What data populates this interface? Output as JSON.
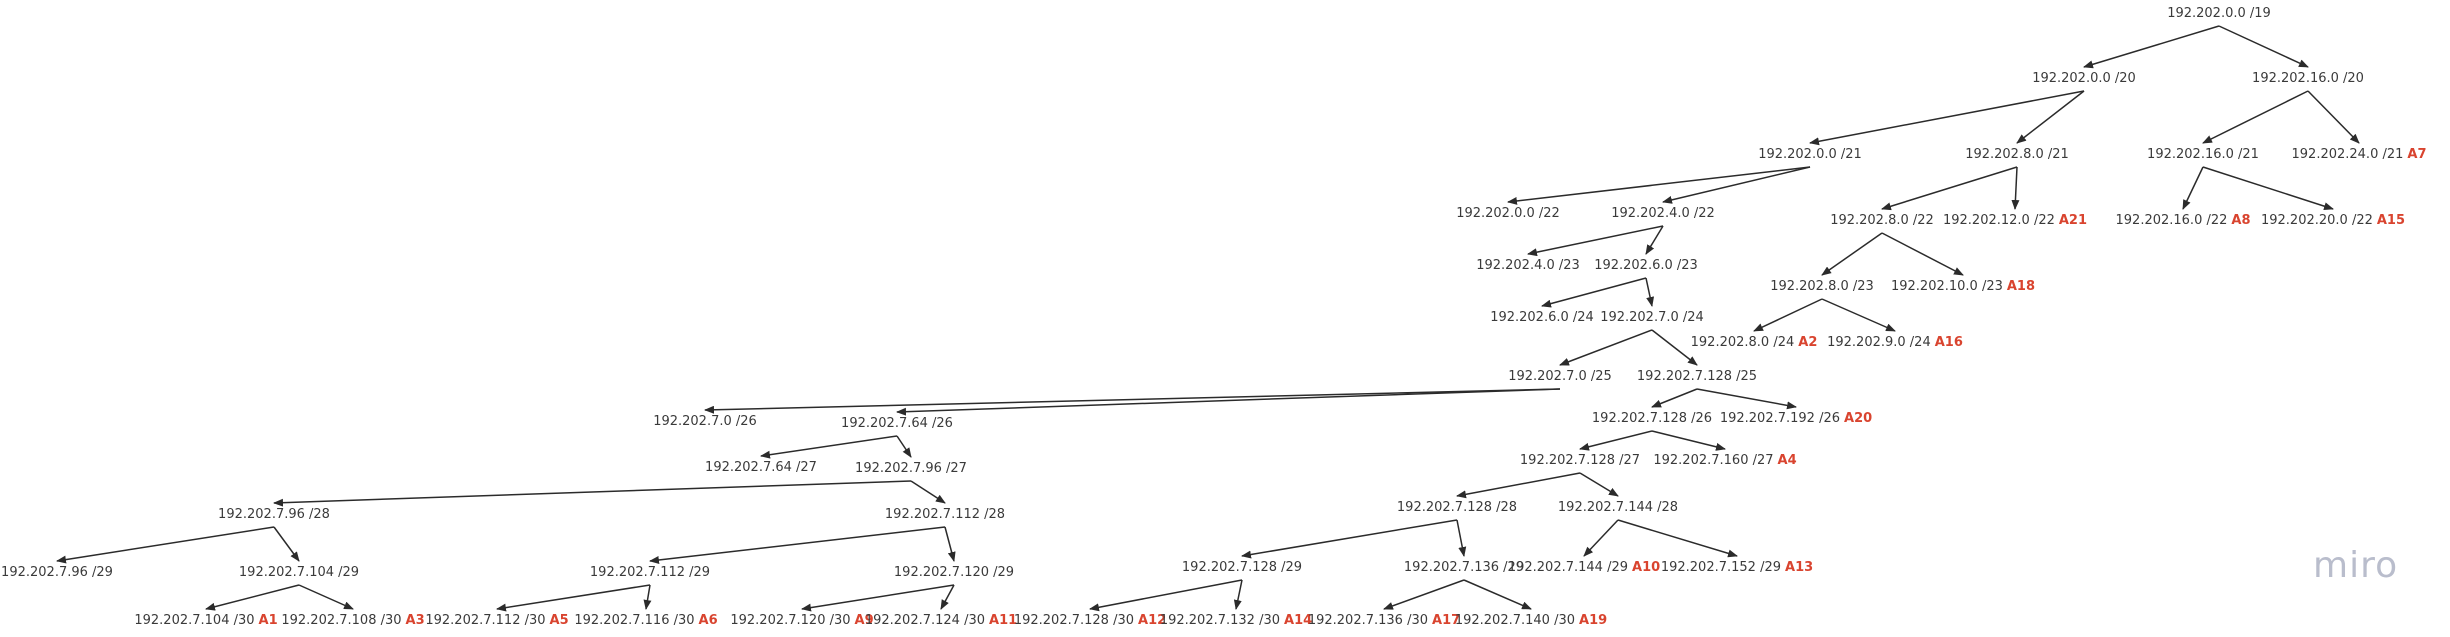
{
  "diagram": {
    "nodes": [
      {
        "id": "n19_0",
        "label": "192.202.0.0 /19",
        "tag": ""
      },
      {
        "id": "n20_0",
        "label": "192.202.0.0 /20",
        "tag": ""
      },
      {
        "id": "n20_16",
        "label": "192.202.16.0 /20",
        "tag": ""
      },
      {
        "id": "n21_0",
        "label": "192.202.0.0 /21",
        "tag": ""
      },
      {
        "id": "n21_8",
        "label": "192.202.8.0 /21",
        "tag": ""
      },
      {
        "id": "n21_16",
        "label": "192.202.16.0 /21",
        "tag": ""
      },
      {
        "id": "n21_24",
        "label": "192.202.24.0 /21",
        "tag": "A7"
      },
      {
        "id": "n22_0",
        "label": "192.202.0.0 /22",
        "tag": ""
      },
      {
        "id": "n22_4",
        "label": "192.202.4.0 /22",
        "tag": ""
      },
      {
        "id": "n22_8",
        "label": "192.202.8.0 /22",
        "tag": ""
      },
      {
        "id": "n22_12",
        "label": "192.202.12.0 /22",
        "tag": "A21"
      },
      {
        "id": "n22_16",
        "label": "192.202.16.0 /22",
        "tag": "A8"
      },
      {
        "id": "n22_20",
        "label": "192.202.20.0 /22",
        "tag": "A15"
      },
      {
        "id": "n23_4",
        "label": "192.202.4.0 /23",
        "tag": ""
      },
      {
        "id": "n23_6",
        "label": "192.202.6.0 /23",
        "tag": ""
      },
      {
        "id": "n23_8",
        "label": "192.202.8.0 /23",
        "tag": ""
      },
      {
        "id": "n23_10",
        "label": "192.202.10.0 /23",
        "tag": "A18"
      },
      {
        "id": "n24_6",
        "label": "192.202.6.0 /24",
        "tag": ""
      },
      {
        "id": "n24_7",
        "label": "192.202.7.0 /24",
        "tag": ""
      },
      {
        "id": "n24_8",
        "label": "192.202.8.0 /24",
        "tag": "A2"
      },
      {
        "id": "n24_9",
        "label": "192.202.9.0 /24",
        "tag": "A16"
      },
      {
        "id": "n25_0",
        "label": "192.202.7.0 /25",
        "tag": ""
      },
      {
        "id": "n25_128",
        "label": "192.202.7.128 /25",
        "tag": ""
      },
      {
        "id": "n26_0",
        "label": "192.202.7.0 /26",
        "tag": ""
      },
      {
        "id": "n26_64",
        "label": "192.202.7.64 /26",
        "tag": ""
      },
      {
        "id": "n26_128",
        "label": "192.202.7.128 /26",
        "tag": ""
      },
      {
        "id": "n26_192",
        "label": "192.202.7.192 /26",
        "tag": "A20"
      },
      {
        "id": "n27_64",
        "label": "192.202.7.64 /27",
        "tag": ""
      },
      {
        "id": "n27_96",
        "label": "192.202.7.96 /27",
        "tag": ""
      },
      {
        "id": "n27_128",
        "label": "192.202.7.128 /27",
        "tag": ""
      },
      {
        "id": "n27_160",
        "label": "192.202.7.160 /27",
        "tag": "A4"
      },
      {
        "id": "n28_96",
        "label": "192.202.7.96 /28",
        "tag": ""
      },
      {
        "id": "n28_112",
        "label": "192.202.7.112 /28",
        "tag": ""
      },
      {
        "id": "n28_128",
        "label": "192.202.7.128 /28",
        "tag": ""
      },
      {
        "id": "n28_144",
        "label": "192.202.7.144 /28",
        "tag": ""
      },
      {
        "id": "n29_96",
        "label": "192.202.7.96 /29",
        "tag": ""
      },
      {
        "id": "n29_104",
        "label": "192.202.7.104 /29",
        "tag": ""
      },
      {
        "id": "n29_112",
        "label": "192.202.7.112 /29",
        "tag": ""
      },
      {
        "id": "n29_120",
        "label": "192.202.7.120 /29",
        "tag": ""
      },
      {
        "id": "n29_128",
        "label": "192.202.7.128 /29",
        "tag": ""
      },
      {
        "id": "n29_136",
        "label": "192.202.7.136 /29",
        "tag": ""
      },
      {
        "id": "n29_144",
        "label": "192.202.7.144 /29",
        "tag": "A10"
      },
      {
        "id": "n29_152",
        "label": "192.202.7.152 /29",
        "tag": "A13"
      },
      {
        "id": "n30_104",
        "label": "192.202.7.104 /30",
        "tag": "A1"
      },
      {
        "id": "n30_108",
        "label": "192.202.7.108 /30",
        "tag": "A3"
      },
      {
        "id": "n30_112",
        "label": "192.202.7.112 /30",
        "tag": "A5"
      },
      {
        "id": "n30_116",
        "label": "192.202.7.116 /30",
        "tag": "A6"
      },
      {
        "id": "n30_120",
        "label": "192.202.7.120 /30",
        "tag": "A9"
      },
      {
        "id": "n30_124",
        "label": "192.202.7.124 /30",
        "tag": "A11"
      },
      {
        "id": "n30_128",
        "label": "192.202.7.128 /30",
        "tag": "A12"
      },
      {
        "id": "n30_132",
        "label": "192.202.7.132 /30",
        "tag": "A14"
      },
      {
        "id": "n30_136",
        "label": "192.202.7.136 /30",
        "tag": "A17"
      },
      {
        "id": "n30_140",
        "label": "192.202.7.140 /30",
        "tag": "A19"
      }
    ],
    "edges": [
      [
        "n19_0",
        "n20_0"
      ],
      [
        "n19_0",
        "n20_16"
      ],
      [
        "n20_0",
        "n21_0"
      ],
      [
        "n20_0",
        "n21_8"
      ],
      [
        "n20_16",
        "n21_16"
      ],
      [
        "n20_16",
        "n21_24"
      ],
      [
        "n21_0",
        "n22_0"
      ],
      [
        "n21_0",
        "n22_4"
      ],
      [
        "n21_8",
        "n22_8"
      ],
      [
        "n21_8",
        "n22_12"
      ],
      [
        "n21_16",
        "n22_16"
      ],
      [
        "n21_16",
        "n22_20"
      ],
      [
        "n22_4",
        "n23_4"
      ],
      [
        "n22_4",
        "n23_6"
      ],
      [
        "n22_8",
        "n23_8"
      ],
      [
        "n22_8",
        "n23_10"
      ],
      [
        "n23_6",
        "n24_6"
      ],
      [
        "n23_6",
        "n24_7"
      ],
      [
        "n23_8",
        "n24_8"
      ],
      [
        "n23_8",
        "n24_9"
      ],
      [
        "n24_7",
        "n25_0"
      ],
      [
        "n24_7",
        "n25_128"
      ],
      [
        "n25_0",
        "n26_0"
      ],
      [
        "n25_0",
        "n26_64"
      ],
      [
        "n25_128",
        "n26_128"
      ],
      [
        "n25_128",
        "n26_192"
      ],
      [
        "n26_64",
        "n27_64"
      ],
      [
        "n26_64",
        "n27_96"
      ],
      [
        "n26_128",
        "n27_128"
      ],
      [
        "n26_128",
        "n27_160"
      ],
      [
        "n27_96",
        "n28_96"
      ],
      [
        "n27_96",
        "n28_112"
      ],
      [
        "n27_128",
        "n28_128"
      ],
      [
        "n27_128",
        "n28_144"
      ],
      [
        "n28_96",
        "n29_96"
      ],
      [
        "n28_96",
        "n29_104"
      ],
      [
        "n28_112",
        "n29_112"
      ],
      [
        "n28_112",
        "n29_120"
      ],
      [
        "n28_128",
        "n29_128"
      ],
      [
        "n28_128",
        "n29_136"
      ],
      [
        "n28_144",
        "n29_144"
      ],
      [
        "n28_144",
        "n29_152"
      ],
      [
        "n29_104",
        "n30_104"
      ],
      [
        "n29_104",
        "n30_108"
      ],
      [
        "n29_112",
        "n30_112"
      ],
      [
        "n29_112",
        "n30_116"
      ],
      [
        "n29_120",
        "n30_120"
      ],
      [
        "n29_120",
        "n30_124"
      ],
      [
        "n29_128",
        "n30_128"
      ],
      [
        "n29_128",
        "n30_132"
      ],
      [
        "n29_136",
        "n30_136"
      ],
      [
        "n29_136",
        "n30_140"
      ]
    ],
    "colors": {
      "edge": "#2b2b2b",
      "label": "#3a3a3a",
      "tag": "#d9442f",
      "brand": "#b9bdcc"
    }
  },
  "brand": {
    "logo_text": "miro"
  }
}
